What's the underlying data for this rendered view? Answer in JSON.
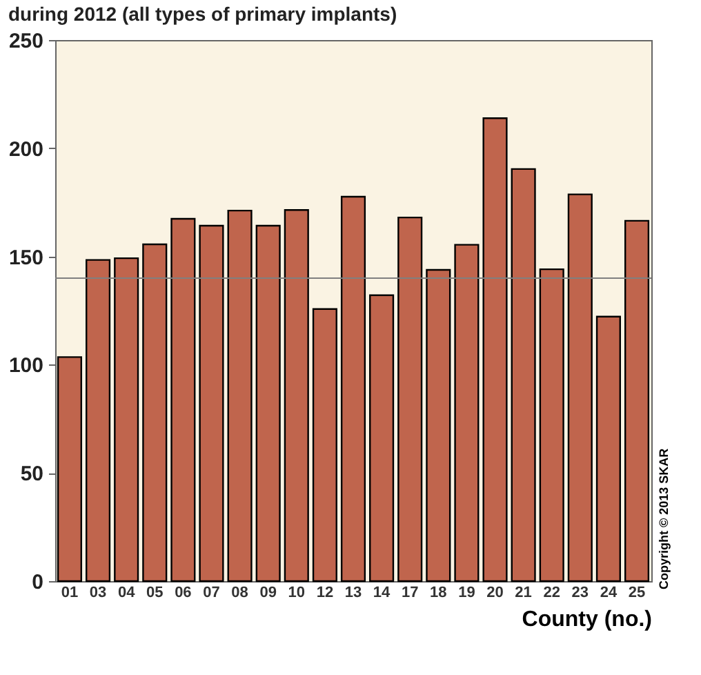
{
  "chart_data": {
    "type": "bar",
    "title": "during 2012 (all types of primary implants)",
    "xlabel": "County (no.)",
    "categories": [
      "01",
      "03",
      "04",
      "05",
      "06",
      "07",
      "08",
      "09",
      "10",
      "12",
      "13",
      "14",
      "17",
      "18",
      "19",
      "20",
      "21",
      "22",
      "23",
      "24",
      "25"
    ],
    "values": [
      103.5,
      148.4,
      149.2,
      155.6,
      167.4,
      164.2,
      171.2,
      164.2,
      171.5,
      125.7,
      177.6,
      132.1,
      168,
      143.8,
      155.4,
      213.9,
      190.4,
      144.1,
      178.7,
      122.2,
      166.5
    ],
    "color": "#c0654d",
    "ylim": [
      0,
      250
    ],
    "yticks": [
      0,
      50,
      100,
      150,
      200,
      250
    ],
    "ref_lines": [
      {
        "axis": "y",
        "value": 140,
        "color": "#808080"
      }
    ],
    "annotations": [
      "Copyright © 2013 SKAR"
    ],
    "grid": false
  }
}
